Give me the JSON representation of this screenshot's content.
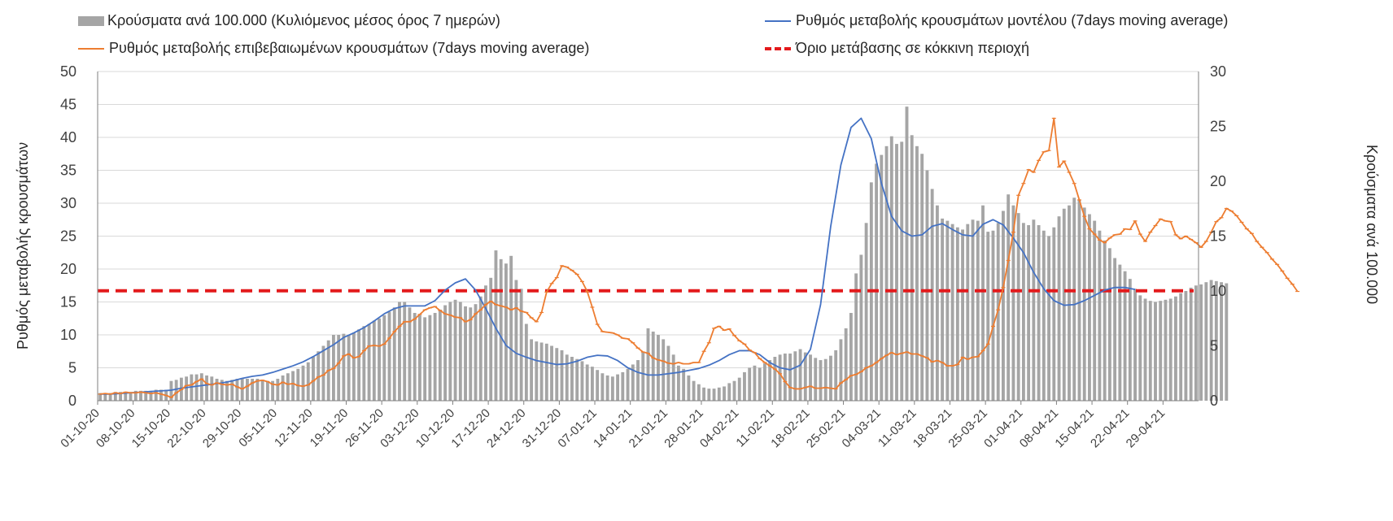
{
  "legend": {
    "bars": "Κρούσματα ανά 100.000 (Κυλιόμενος μέσος όρος 7 ημερών)",
    "model": "Ρυθμός μεταβολής κρουσμάτων μοντέλου (7days moving average)",
    "confirmed": "Ρυθμός μεταβολής επιβεβαιωμένων κρουσμάτων (7days moving average)",
    "threshold": "Όριο μετάβασης σε κόκκινη περιοχή"
  },
  "colors": {
    "bars": "#a5a5a5",
    "model": "#4472c4",
    "confirmed": "#ed7d31",
    "threshold": "#e31a1c",
    "grid": "#d9d9d9"
  },
  "chart_data": {
    "type": "bar+line",
    "start_date": "2020-10-01",
    "days": 217,
    "x_tick_labels": [
      "01-10-20",
      "08-10-20",
      "15-10-20",
      "22-10-20",
      "29-10-20",
      "05-11-20",
      "12-11-20",
      "19-11-20",
      "26-11-20",
      "03-12-20",
      "10-12-20",
      "17-12-20",
      "24-12-20",
      "31-12-20",
      "07-01-21",
      "14-01-21",
      "21-01-21",
      "28-01-21",
      "04-02-21",
      "11-02-21",
      "18-02-21",
      "25-02-21",
      "04-03-21",
      "11-03-21",
      "18-03-21",
      "25-03-21",
      "01-04-21",
      "08-04-21",
      "15-04-21",
      "22-04-21",
      "29-04-21"
    ],
    "y_left": {
      "label": "Ρυθμός μεταβολής κρουσμάτων",
      "min": 0,
      "max": 50,
      "ticks": [
        0,
        5,
        10,
        15,
        20,
        25,
        30,
        35,
        40,
        45,
        50
      ]
    },
    "y_right": {
      "label": "Κρούσματα ανά 100.000",
      "min": 0,
      "max": 30,
      "ticks": [
        0,
        5,
        10,
        15,
        20,
        25,
        30
      ]
    },
    "threshold": {
      "name": "Όριο μετάβασης σε κόκκινη περιοχή",
      "value": 16.7,
      "axis": "left"
    },
    "series": [
      {
        "name": "Κρούσματα ανά 100.000 (Κυλιόμενος μέσος όρος 7 ημερών)",
        "kind": "bar",
        "axis": "right",
        "sample_every_days": 1,
        "values": [
          0.7,
          0.7,
          0.7,
          0.8,
          0.8,
          0.8,
          0.8,
          0.9,
          0.9,
          0.9,
          0.9,
          1.0,
          1.0,
          1.0,
          1.8,
          1.9,
          2.1,
          2.2,
          2.4,
          2.4,
          2.5,
          2.3,
          2.2,
          2.0,
          1.9,
          1.8,
          1.9,
          2.0,
          2.0,
          2.0,
          2.0,
          2.0,
          1.9,
          1.8,
          1.8,
          2.0,
          2.3,
          2.5,
          2.7,
          2.9,
          3.2,
          3.5,
          4.0,
          4.5,
          5.0,
          5.5,
          6.0,
          6.0,
          6.1,
          6.0,
          6.2,
          6.5,
          6.8,
          7.0,
          7.3,
          7.5,
          7.8,
          8.1,
          8.5,
          9.0,
          9.0,
          8.5,
          8.0,
          7.8,
          7.6,
          7.8,
          8.0,
          8.3,
          8.7,
          9.0,
          9.2,
          9.0,
          8.6,
          8.5,
          8.8,
          9.5,
          10.5,
          11.2,
          13.7,
          12.9,
          12.5,
          13.2,
          11.0,
          10.2,
          7.0,
          5.6,
          5.4,
          5.3,
          5.2,
          5.0,
          4.8,
          4.6,
          4.2,
          4.0,
          3.8,
          3.6,
          3.3,
          3.1,
          2.8,
          2.5,
          2.3,
          2.2,
          2.4,
          2.6,
          2.9,
          3.3,
          3.7,
          4.4,
          6.6,
          6.3,
          6.0,
          5.6,
          5.0,
          4.2,
          3.2,
          2.9,
          2.3,
          1.8,
          1.5,
          1.2,
          1.1,
          1.1,
          1.2,
          1.3,
          1.6,
          1.8,
          2.1,
          2.6,
          3.0,
          3.2,
          3.0,
          3.4,
          3.7,
          4.0,
          4.2,
          4.3,
          4.3,
          4.5,
          4.7,
          4.4,
          4.2,
          3.9,
          3.7,
          3.8,
          4.1,
          4.6,
          5.6,
          6.6,
          8.0,
          11.6,
          13.3,
          16.2,
          19.9,
          21.6,
          22.4,
          23.2,
          24.1,
          23.4,
          23.6,
          26.8,
          24.2,
          23.2,
          22.5,
          21.0,
          19.3,
          17.8,
          16.6,
          16.4,
          16.1,
          15.8,
          15.6,
          16.1,
          16.5,
          16.4,
          17.8,
          15.4,
          15.5,
          16.2,
          17.3,
          18.8,
          17.8,
          17.1,
          16.2,
          16.0,
          16.5,
          16.0,
          15.5,
          15.0,
          15.8,
          16.8,
          17.5,
          17.8,
          18.5,
          18.3,
          17.6,
          17.0,
          16.4,
          15.5,
          14.6,
          13.9,
          13.0,
          12.4,
          11.8,
          11.1,
          10.2,
          9.6,
          9.3,
          9.1,
          9.0,
          9.1,
          9.2,
          9.3,
          9.5,
          9.8,
          10.0,
          10.3,
          10.5,
          10.6,
          10.8,
          11.0,
          10.9,
          10.8,
          10.7
        ]
      },
      {
        "name": "Ρυθμός μεταβολής κρουσμάτων μοντέλου (7days moving average)",
        "kind": "line",
        "axis": "left",
        "sample_every_days": 2,
        "values": [
          1.0,
          1.0,
          1.1,
          1.2,
          1.3,
          1.4,
          1.5,
          1.6,
          1.9,
          2.1,
          2.3,
          2.5,
          2.7,
          3.0,
          3.4,
          3.7,
          3.9,
          4.3,
          4.8,
          5.3,
          5.9,
          6.7,
          7.6,
          8.5,
          9.6,
          10.3,
          11.1,
          12.1,
          13.2,
          14.0,
          14.4,
          14.4,
          14.4,
          15.2,
          16.8,
          17.9,
          18.5,
          16.8,
          14.0,
          11.0,
          8.4,
          7.2,
          6.6,
          6.1,
          5.8,
          5.5,
          5.6,
          6.0,
          6.6,
          6.9,
          6.8,
          6.1,
          5.0,
          4.3,
          3.9,
          3.9,
          4.1,
          4.3,
          4.6,
          4.9,
          5.4,
          6.1,
          7.0,
          7.6,
          7.6,
          7.0,
          5.8,
          5.0,
          4.7,
          5.4,
          7.8,
          14.6,
          26.5,
          35.8,
          41.5,
          42.9,
          39.8,
          33.0,
          28.0,
          25.8,
          25.0,
          25.2,
          26.5,
          26.9,
          26.0,
          25.2,
          25.0,
          26.8,
          27.5,
          26.7,
          24.7,
          22.5,
          19.5,
          17.0,
          15.2,
          14.5,
          14.6,
          15.2,
          16.0,
          16.8,
          17.2,
          17.2,
          16.9
        ]
      },
      {
        "name": "Ρυθμός μεταβολής επιβεβαιωμένων κρουσμάτων (7days moving average)",
        "kind": "line",
        "axis": "left",
        "sample_every_days": 1,
        "values": [
          1.0,
          1.1,
          1.0,
          1.2,
          1.1,
          1.3,
          1.2,
          1.2,
          1.3,
          1.2,
          1.1,
          1.2,
          1.0,
          0.8,
          0.5,
          1.2,
          1.7,
          2.3,
          2.4,
          2.9,
          3.3,
          2.6,
          2.4,
          2.7,
          2.5,
          2.4,
          2.5,
          2.1,
          1.8,
          2.2,
          2.7,
          3.0,
          3.1,
          2.9,
          2.5,
          2.4,
          2.8,
          2.5,
          2.6,
          2.3,
          2.2,
          2.4,
          3.0,
          3.6,
          3.9,
          4.6,
          4.9,
          5.7,
          6.8,
          7.1,
          6.5,
          6.7,
          7.6,
          8.3,
          8.4,
          8.3,
          8.6,
          9.5,
          10.5,
          11.3,
          12.0,
          12.0,
          12.4,
          13.1,
          13.8,
          14.1,
          14.3,
          13.7,
          13.2,
          13.0,
          12.7,
          12.6,
          12.0,
          12.3,
          13.2,
          13.8,
          14.6,
          15.1,
          14.6,
          14.4,
          14.2,
          13.8,
          14.1,
          13.6,
          13.4,
          12.6,
          12.0,
          13.4,
          16.5,
          17.8,
          18.7,
          20.5,
          20.3,
          19.8,
          19.2,
          18.1,
          16.6,
          14.2,
          11.6,
          10.5,
          10.4,
          10.3,
          10.0,
          9.5,
          9.4,
          8.8,
          8.0,
          7.4,
          7.2,
          6.5,
          6.2,
          6.0,
          5.7,
          5.6,
          5.8,
          5.6,
          5.6,
          5.8,
          5.8,
          7.5,
          8.8,
          11.0,
          11.3,
          10.7,
          10.9,
          9.9,
          9.1,
          8.6,
          7.7,
          7.3,
          6.4,
          5.8,
          5.3,
          4.8,
          4.1,
          2.9,
          2.0,
          1.8,
          1.8,
          2.0,
          2.2,
          1.9,
          1.9,
          2.0,
          1.9,
          1.8,
          2.7,
          3.2,
          3.8,
          4.0,
          4.4,
          5.0,
          5.3,
          5.8,
          6.4,
          6.9,
          7.3,
          7.0,
          7.2,
          7.4,
          7.1,
          7.1,
          6.8,
          6.5,
          5.9,
          6.1,
          5.8,
          5.3,
          5.3,
          5.5,
          6.6,
          6.3,
          6.6,
          6.7,
          7.6,
          8.6,
          11.3,
          13.8,
          17.2,
          21.3,
          25.6,
          31.2,
          33.0,
          35.1,
          34.7,
          36.5,
          37.8,
          38.0,
          42.9,
          35.5,
          36.4,
          34.7,
          33.0,
          30.5,
          28.0,
          26.1,
          25.3,
          24.4,
          24.0,
          24.7,
          25.2,
          25.3,
          26.1,
          26.0,
          27.3,
          25.3,
          24.2,
          25.6,
          26.6,
          27.6,
          27.3,
          27.2,
          25.2,
          24.6,
          25.0,
          24.5,
          24.0,
          23.3,
          24.2,
          25.6,
          27.2,
          27.8,
          29.2,
          28.8,
          28.1,
          27.1,
          26.1,
          25.4,
          24.2,
          23.3,
          22.5,
          21.5,
          20.7,
          19.7,
          18.6,
          17.7,
          16.6
        ]
      }
    ]
  }
}
